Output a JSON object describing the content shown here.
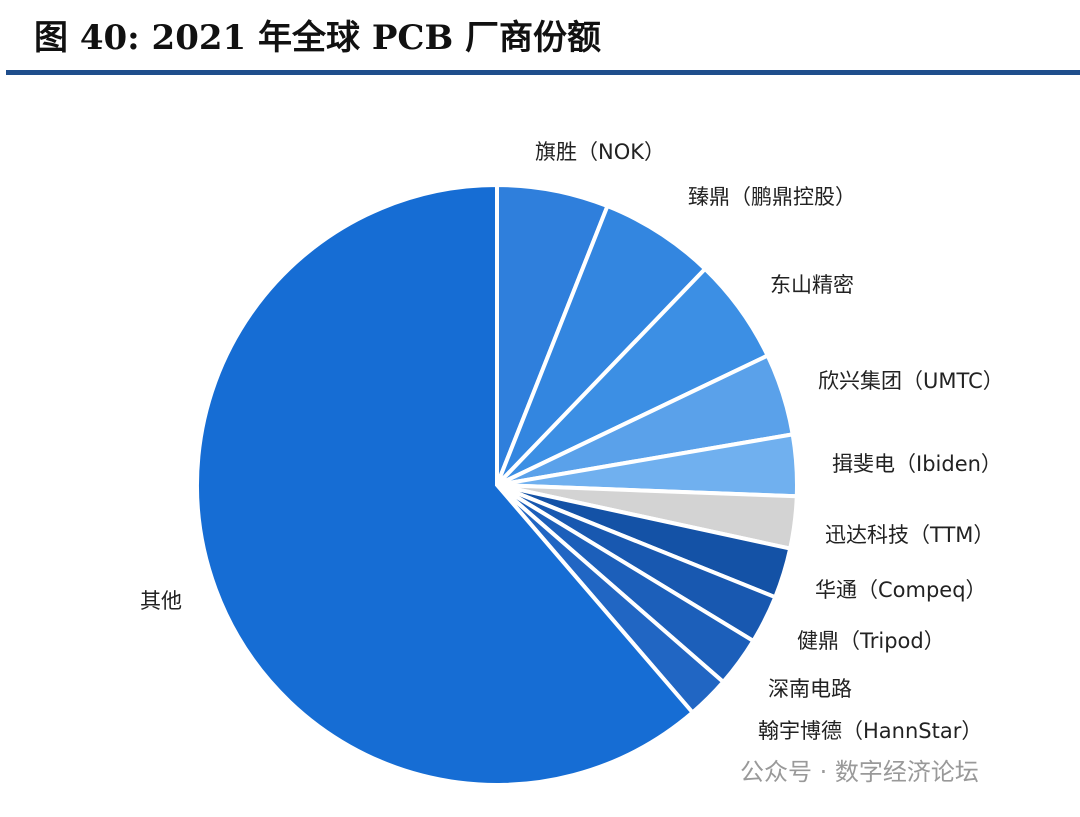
{
  "chart_data": {
    "type": "pie",
    "title": "图 40: 2021 年全球 PCB 厂商份额",
    "categories": [
      "旗胜（NOK）",
      "臻鼎（鹏鼎控股）",
      "东山精密",
      "欣兴集团（UMTC）",
      "揖斐电（Ibiden）",
      "迅达科技（TTM）",
      "华通（Compeq）",
      "健鼎（Tripod）",
      "深南电路",
      "翰宇博德（HannStar）",
      "其他"
    ],
    "values": [
      6.0,
      6.2,
      5.7,
      4.4,
      3.3,
      2.8,
      2.7,
      2.6,
      2.7,
      2.3,
      61.3
    ],
    "colors": [
      "#2f7fdc",
      "#3386e0",
      "#3c8fe4",
      "#5aa1ea",
      "#70b0ef",
      "#d3d3d3",
      "#1452a6",
      "#1858b0",
      "#1c5fba",
      "#2166c3",
      "#166dd4"
    ]
  },
  "watermark": "公众号 · 数字经济论坛"
}
